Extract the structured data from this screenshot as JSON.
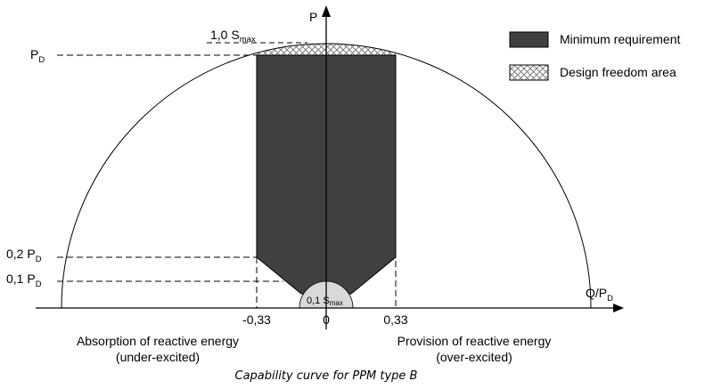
{
  "figure": {
    "caption": "Capability curve for PPM type B",
    "colors": {
      "minimum_requirement": "#404040",
      "freedom_hatch": "#707070",
      "small_circle": "#d9d9d9",
      "lines": "#000000"
    }
  },
  "axes": {
    "y_label": "P",
    "x_label_main": "Q/P",
    "x_label_sub": "D",
    "origin_label": "0",
    "x_ticks": [
      "-0,33",
      "0,33"
    ]
  },
  "levels": {
    "pd": {
      "main": "P",
      "sub": "D"
    },
    "p02": {
      "main": "0,2 P",
      "sub": "D"
    },
    "p01": {
      "main": "0,1 P",
      "sub": "D"
    }
  },
  "annotations": {
    "smax_top": {
      "main": "1,0 S",
      "sub": "max"
    },
    "smax_small": {
      "main": "0,1 S",
      "sub": "max"
    }
  },
  "legend": {
    "min_req": "Minimum requirement",
    "freedom": "Design freedom area"
  },
  "side_labels": {
    "left_line1": "Absorption of reactive energy",
    "left_line2": "(under-excited)",
    "right_line1": "Provision of reactive energy",
    "right_line2": "(over-excited)"
  }
}
